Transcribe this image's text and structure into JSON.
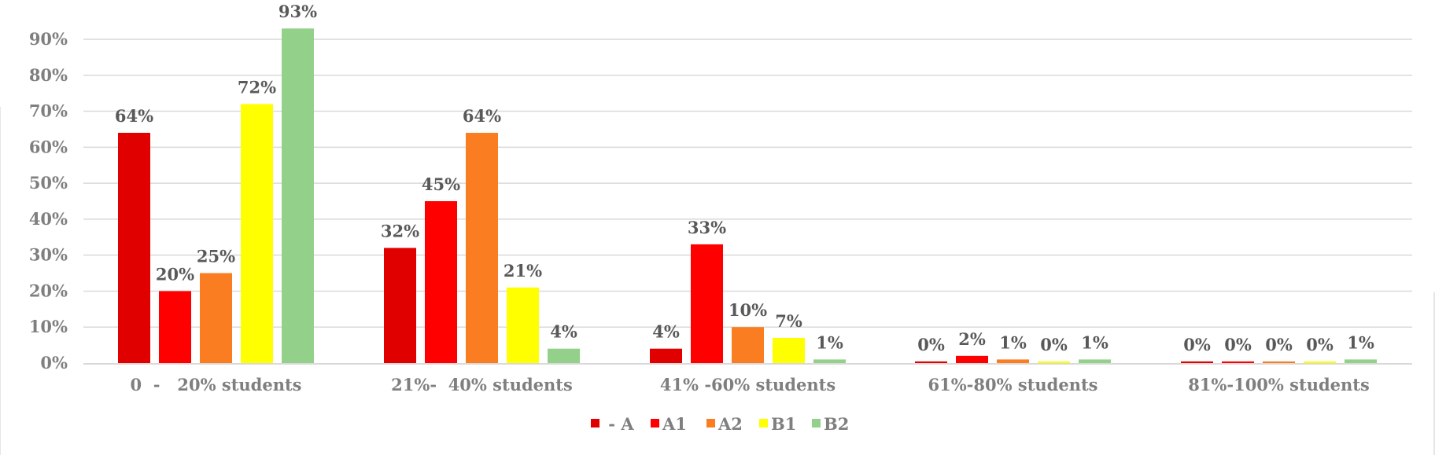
{
  "chart_data": {
    "type": "bar",
    "categories": [
      "0  -   20% students",
      "21%-  40% students",
      "41% -60% students",
      "61%-80% students",
      "81%-100% students"
    ],
    "series": [
      {
        "name": " - A",
        "color": "#e00000",
        "values": [
          64,
          32,
          4,
          0,
          0
        ],
        "labels": [
          "64%",
          "32%",
          "4%",
          "0%",
          "0%"
        ]
      },
      {
        "name": "A1",
        "color": "#ff0000",
        "values": [
          20,
          45,
          33,
          2,
          0
        ],
        "labels": [
          "20%",
          "45%",
          "33%",
          "2%",
          "0%"
        ]
      },
      {
        "name": "A2",
        "color": "#fa7d22",
        "values": [
          25,
          64,
          10,
          1,
          0
        ],
        "labels": [
          "25%",
          "64%",
          "10%",
          "1%",
          "0%"
        ]
      },
      {
        "name": "B1",
        "color": "#ffff00",
        "values": [
          72,
          21,
          7,
          0,
          0
        ],
        "labels": [
          "72%",
          "21%",
          "7%",
          "0%",
          "0%"
        ]
      },
      {
        "name": "B2",
        "color": "#93d18a",
        "values": [
          93,
          4,
          1,
          1,
          1
        ],
        "labels": [
          "93%",
          "4%",
          "1%",
          "1%",
          "1%"
        ]
      }
    ],
    "ylim": [
      0,
      90
    ],
    "yticks": [
      "0%",
      "10%",
      "20%",
      "30%",
      "40%",
      "50%",
      "60%",
      "70%",
      "80%",
      "90%"
    ],
    "grid": true,
    "legend": "bottom",
    "title": "",
    "xlabel": "",
    "ylabel": ""
  }
}
